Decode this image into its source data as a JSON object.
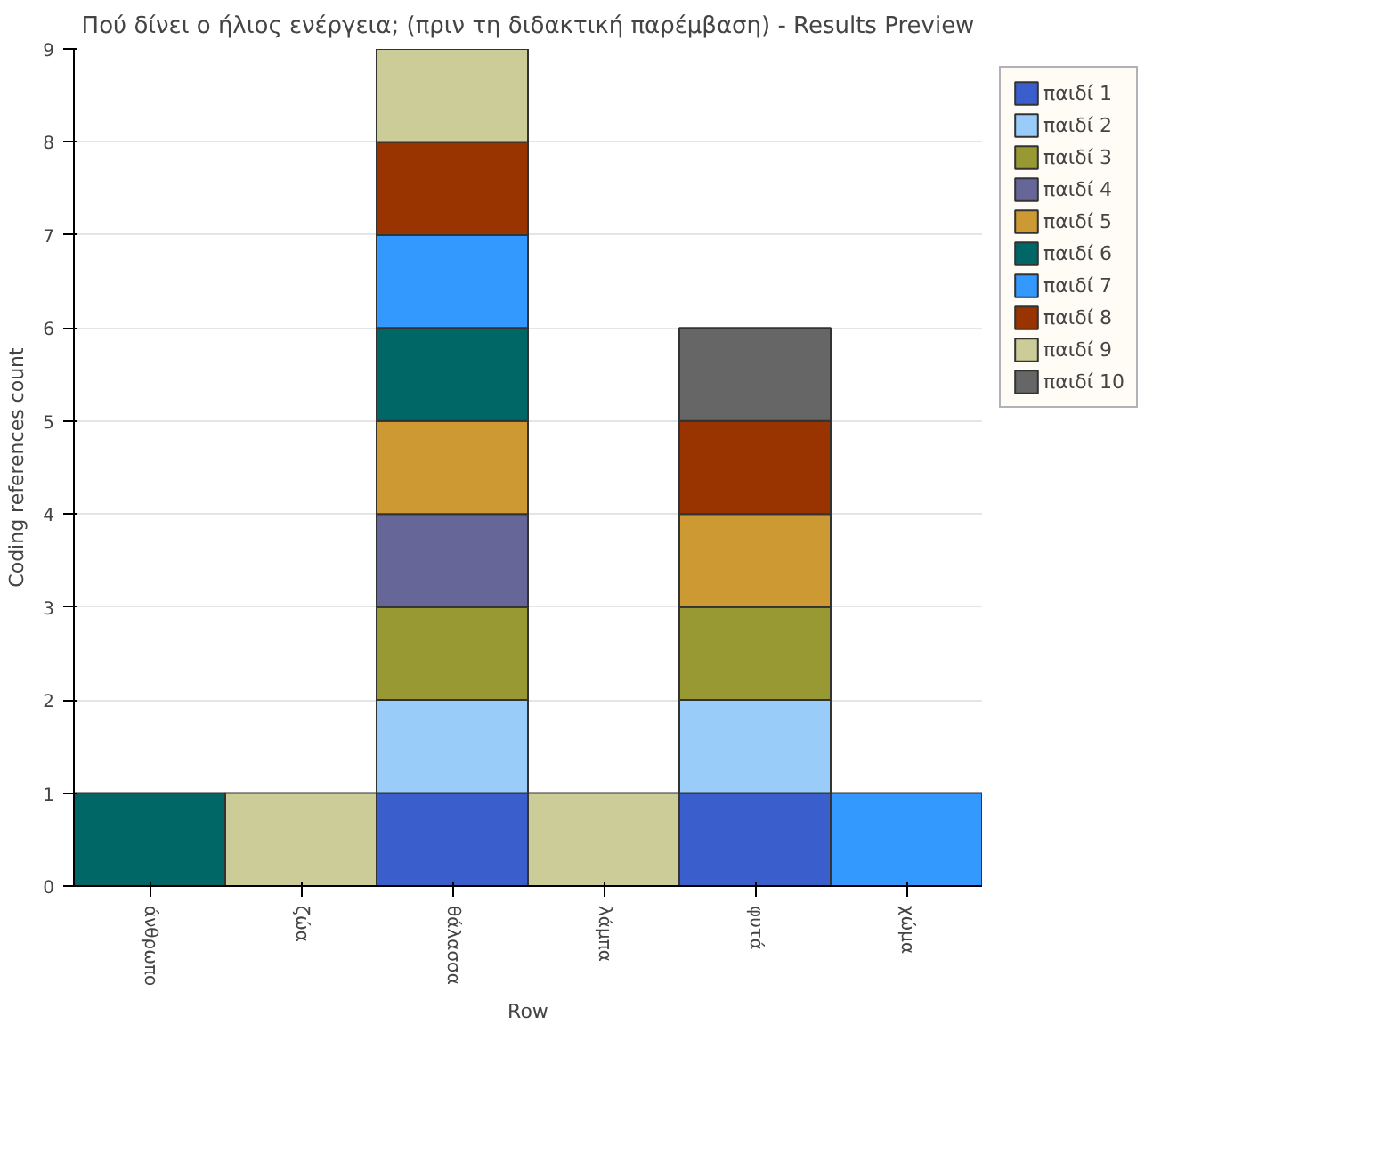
{
  "chart_data": {
    "type": "bar",
    "stacked": true,
    "title": "Πού δίνει ο ήλιος ενέργεια; (πριν τη διδακτική παρέμβαση) - Results Preview",
    "xlabel": "Row",
    "ylabel": "Coding references count",
    "categories": [
      "άνθρωπο",
      "ζώα",
      "θάλασσα",
      "λάμπα",
      "φυτά",
      "χώμα"
    ],
    "ylim": [
      0,
      9
    ],
    "yticks": [
      0,
      1,
      2,
      3,
      4,
      5,
      6,
      7,
      8,
      9
    ],
    "grid": "y",
    "legend": "right",
    "series": [
      {
        "name": "παιδί 1",
        "color": "#3a5fcd",
        "values": [
          null,
          null,
          1,
          null,
          1,
          null
        ]
      },
      {
        "name": "παιδί 2",
        "color": "#99ccf9",
        "values": [
          null,
          null,
          1,
          null,
          1,
          null
        ]
      },
      {
        "name": "παιδί 3",
        "color": "#999933",
        "values": [
          null,
          null,
          1,
          null,
          1,
          null
        ]
      },
      {
        "name": "παιδί 4",
        "color": "#666699",
        "values": [
          null,
          null,
          1,
          null,
          null,
          null
        ]
      },
      {
        "name": "παιδί 5",
        "color": "#cc9933",
        "values": [
          null,
          null,
          1,
          null,
          1,
          null
        ]
      },
      {
        "name": "παιδί 6",
        "color": "#006666",
        "values": [
          1,
          null,
          1,
          null,
          null,
          null
        ]
      },
      {
        "name": "παιδί 7",
        "color": "#3399ff",
        "values": [
          null,
          null,
          1,
          null,
          null,
          1
        ]
      },
      {
        "name": "παιδί 8",
        "color": "#993300",
        "values": [
          null,
          null,
          1,
          null,
          1,
          null
        ]
      },
      {
        "name": "παιδί 9",
        "color": "#cccc99",
        "values": [
          null,
          1,
          1,
          1,
          null,
          null
        ]
      },
      {
        "name": "παιδί 10",
        "color": "#666666",
        "values": [
          null,
          null,
          null,
          null,
          1,
          null
        ]
      }
    ]
  }
}
